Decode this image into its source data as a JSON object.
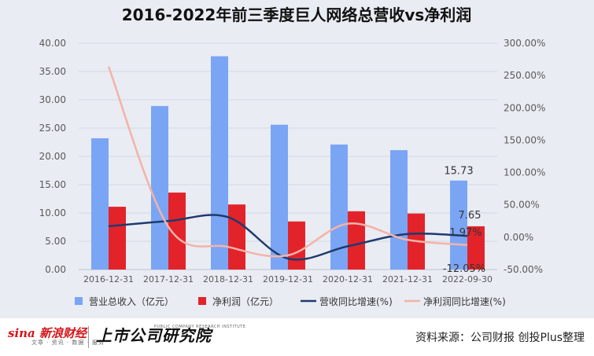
{
  "chart_data": {
    "type": "bar",
    "title": "2016-2022年前三季度巨人网络总营收vs净利润",
    "categories": [
      "2016-12-31",
      "2017-12-31",
      "2018-12-31",
      "2019-12-31",
      "2020-12-31",
      "2021-12-31",
      "2022-09-30"
    ],
    "left_axis": {
      "ylim": [
        0,
        40
      ],
      "ticks": [
        "0.00",
        "5.00",
        "10.00",
        "15.00",
        "20.00",
        "25.00",
        "30.00",
        "35.00",
        "40.00"
      ]
    },
    "right_axis": {
      "ylim": [
        -50,
        300
      ],
      "ticks": [
        "-50.00%",
        "0.00%",
        "50.00%",
        "100.00%",
        "150.00%",
        "200.00%",
        "250.00%",
        "300.00%"
      ]
    },
    "grid": true,
    "legend_position": "bottom",
    "series": [
      {
        "name": "营业总收入（亿元）",
        "type": "bar",
        "axis": "left",
        "color": "#7aa5f5",
        "values": [
          23.2,
          28.9,
          37.7,
          25.6,
          22.1,
          21.1,
          15.73
        ]
      },
      {
        "name": "净利润（亿元）",
        "type": "bar",
        "axis": "left",
        "color": "#e3232a",
        "values": [
          11.1,
          13.6,
          11.5,
          8.5,
          10.3,
          9.9,
          7.65
        ]
      },
      {
        "name": "营收同比增速(%)",
        "type": "line",
        "axis": "right",
        "color": "#1f3a6e",
        "values": [
          17,
          25,
          31,
          -33,
          -14,
          5,
          1.97
        ]
      },
      {
        "name": "净利润同比增速(%)",
        "type": "line",
        "axis": "right",
        "color": "#f4b3a8",
        "values": [
          264,
          16,
          -15,
          -28,
          21,
          -4,
          -12.05
        ]
      }
    ],
    "data_labels": [
      {
        "series": 0,
        "index": 6,
        "text": "15.73"
      },
      {
        "series": 1,
        "index": 6,
        "text": "7.65"
      },
      {
        "series": 2,
        "index": 6,
        "text": "1.97%"
      },
      {
        "series": 3,
        "index": 6,
        "text": "-12.05%"
      }
    ]
  },
  "footer": {
    "sina_logo_text": "sina 新浪财经",
    "sina_sub_text": "文章 · 资讯 · 数据 · 服务",
    "institute_logo_text": "上市公司研究院",
    "institute_en_text": "PUBLIC COMPANY RESEARCH INSTITUTE",
    "source_text": "资料来源：公司财报 创投Plus整理"
  },
  "colors": {
    "panel_bg": "#e9ecf3",
    "grid": "#d4d8e0",
    "axis_text": "#595959"
  }
}
